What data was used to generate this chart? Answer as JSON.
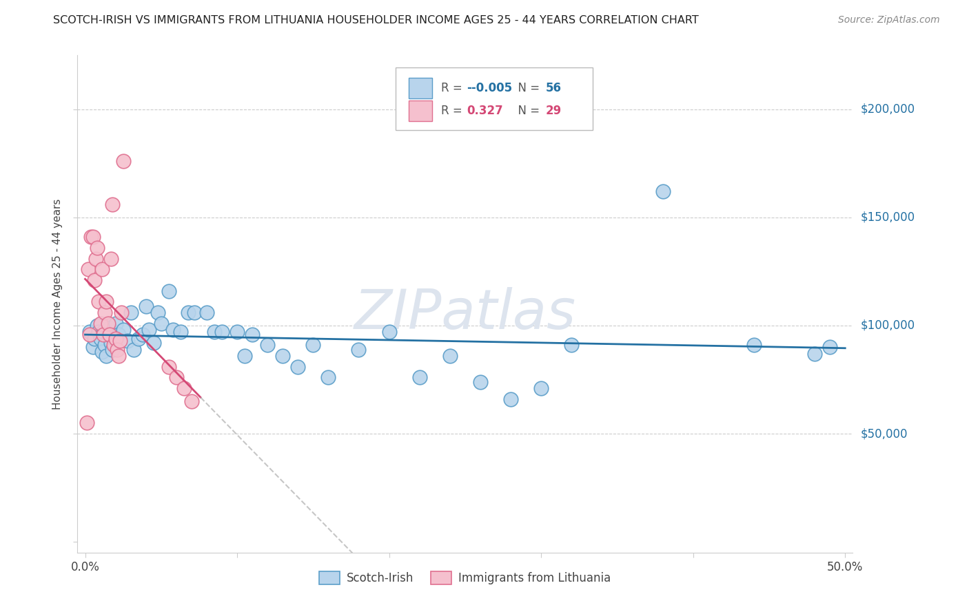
{
  "title": "SCOTCH-IRISH VS IMMIGRANTS FROM LITHUANIA HOUSEHOLDER INCOME AGES 25 - 44 YEARS CORRELATION CHART",
  "source": "Source: ZipAtlas.com",
  "ylabel": "Householder Income Ages 25 - 44 years",
  "xlim": [
    -0.005,
    0.505
  ],
  "ylim": [
    -5000,
    225000
  ],
  "ytick_vals": [
    0,
    50000,
    100000,
    150000,
    200000
  ],
  "ytick_labels": [
    "",
    "$50,000",
    "$100,000",
    "$150,000",
    "$200,000"
  ],
  "xtick_vals": [
    0.0,
    0.1,
    0.2,
    0.3,
    0.4,
    0.5
  ],
  "xtick_labels": [
    "0.0%",
    "",
    "",
    "",
    "",
    "50.0%"
  ],
  "blue_fill": "#b8d4ec",
  "blue_edge": "#5b9ec9",
  "pink_fill": "#f5c0ce",
  "pink_edge": "#e07090",
  "trend_blue_color": "#2471a3",
  "trend_pink_color": "#d44875",
  "trend_gray_color": "#b8b8b8",
  "watermark_color": "#dde4ee",
  "R_blue": "-0.005",
  "N_blue": "56",
  "R_pink": "0.327",
  "N_pink": "29",
  "scotch_irish_x": [
    0.003,
    0.005,
    0.006,
    0.008,
    0.009,
    0.01,
    0.011,
    0.012,
    0.013,
    0.014,
    0.015,
    0.016,
    0.017,
    0.018,
    0.019,
    0.02,
    0.022,
    0.025,
    0.028,
    0.03,
    0.032,
    0.035,
    0.038,
    0.04,
    0.042,
    0.045,
    0.048,
    0.05,
    0.055,
    0.058,
    0.063,
    0.068,
    0.072,
    0.08,
    0.085,
    0.09,
    0.1,
    0.105,
    0.11,
    0.12,
    0.13,
    0.14,
    0.15,
    0.16,
    0.18,
    0.2,
    0.22,
    0.24,
    0.26,
    0.28,
    0.3,
    0.32,
    0.38,
    0.44,
    0.48,
    0.49
  ],
  "scotch_irish_y": [
    97000,
    90000,
    94000,
    100000,
    97000,
    94000,
    88000,
    97000,
    91000,
    86000,
    96000,
    99000,
    92000,
    89000,
    94000,
    101000,
    96000,
    98000,
    93000,
    106000,
    89000,
    94000,
    96000,
    109000,
    98000,
    92000,
    106000,
    101000,
    116000,
    98000,
    97000,
    106000,
    106000,
    106000,
    97000,
    97000,
    97000,
    86000,
    96000,
    91000,
    86000,
    81000,
    91000,
    76000,
    89000,
    97000,
    76000,
    86000,
    74000,
    66000,
    71000,
    91000,
    162000,
    91000,
    87000,
    90000
  ],
  "lithuania_x": [
    0.001,
    0.002,
    0.003,
    0.004,
    0.005,
    0.006,
    0.007,
    0.008,
    0.009,
    0.01,
    0.011,
    0.012,
    0.013,
    0.014,
    0.015,
    0.016,
    0.017,
    0.018,
    0.019,
    0.02,
    0.021,
    0.022,
    0.023,
    0.024,
    0.025,
    0.055,
    0.06,
    0.065,
    0.07
  ],
  "lithuania_y": [
    55000,
    126000,
    96000,
    141000,
    141000,
    121000,
    131000,
    136000,
    111000,
    101000,
    126000,
    96000,
    106000,
    111000,
    101000,
    96000,
    131000,
    156000,
    91000,
    94000,
    89000,
    86000,
    93000,
    106000,
    176000,
    81000,
    76000,
    71000,
    65000
  ]
}
